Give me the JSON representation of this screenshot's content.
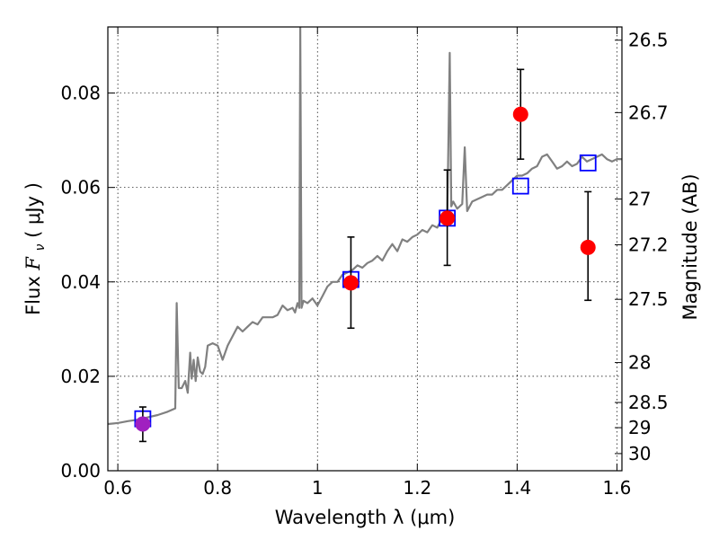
{
  "chart_data": {
    "type": "scatter",
    "xlabel": "Wavelength  λ (μm)",
    "ylabel_prefix": "Flux ",
    "ylabel_symbol": "F",
    "ylabel_sub": "ν",
    "ylabel_suffix": "  ( μJy )",
    "y2label": "Magnitude (AB)",
    "xlim": [
      0.58,
      1.61
    ],
    "ylim": [
      0.0,
      0.094
    ],
    "xticks": [
      0.6,
      0.8,
      1.0,
      1.2,
      1.4,
      1.6
    ],
    "xtick_labels": [
      "0.6",
      "0.8",
      "1",
      "1.2",
      "1.4",
      "1.6"
    ],
    "yticks": [
      0.0,
      0.02,
      0.04,
      0.06,
      0.08
    ],
    "ytick_labels": [
      "0.00",
      "0.02",
      "0.04",
      "0.06",
      "0.08"
    ],
    "y2ticks": [
      26.5,
      26.7,
      27,
      27.2,
      27.5,
      28,
      28.5,
      29,
      30
    ],
    "y2tick_labels": [
      "26.5",
      "26.7",
      "27",
      "27.2",
      "27.5",
      "28",
      "28.5",
      "29",
      "30"
    ],
    "grid": true,
    "colors": {
      "spectrum": "#808080",
      "model_box": "#0000ff",
      "observed": "#ff0000",
      "observed_first": "#a020c0",
      "errorbar": "#000000"
    },
    "series": [
      {
        "kind": "spectrum",
        "x": [
          0.58,
          0.6,
          0.62,
          0.64,
          0.66,
          0.68,
          0.7,
          0.715,
          0.718,
          0.722,
          0.728,
          0.735,
          0.74,
          0.745,
          0.748,
          0.752,
          0.756,
          0.76,
          0.765,
          0.77,
          0.775,
          0.78,
          0.79,
          0.8,
          0.81,
          0.82,
          0.83,
          0.84,
          0.85,
          0.86,
          0.87,
          0.88,
          0.89,
          0.9,
          0.91,
          0.92,
          0.93,
          0.94,
          0.95,
          0.955,
          0.96,
          0.9635,
          0.9655,
          0.968,
          0.972,
          0.98,
          0.99,
          1.0,
          1.01,
          1.02,
          1.03,
          1.04,
          1.05,
          1.06,
          1.07,
          1.08,
          1.09,
          1.1,
          1.11,
          1.12,
          1.13,
          1.14,
          1.15,
          1.16,
          1.17,
          1.18,
          1.19,
          1.2,
          1.21,
          1.22,
          1.23,
          1.24,
          1.25,
          1.255,
          1.26,
          1.265,
          1.268,
          1.272,
          1.28,
          1.29,
          1.295,
          1.3,
          1.31,
          1.32,
          1.33,
          1.34,
          1.35,
          1.36,
          1.37,
          1.38,
          1.39,
          1.4,
          1.41,
          1.42,
          1.43,
          1.44,
          1.45,
          1.46,
          1.47,
          1.48,
          1.49,
          1.5,
          1.51,
          1.52,
          1.53,
          1.54,
          1.55,
          1.56,
          1.57,
          1.58,
          1.59,
          1.6,
          1.61
        ],
        "y": [
          0.0099,
          0.0101,
          0.0105,
          0.0108,
          0.0113,
          0.0118,
          0.0125,
          0.0132,
          0.0355,
          0.0175,
          0.0175,
          0.019,
          0.0165,
          0.025,
          0.0195,
          0.0235,
          0.019,
          0.024,
          0.021,
          0.0205,
          0.022,
          0.0265,
          0.027,
          0.0265,
          0.0235,
          0.0265,
          0.0285,
          0.0305,
          0.0295,
          0.0305,
          0.0315,
          0.031,
          0.0325,
          0.0325,
          0.0325,
          0.033,
          0.035,
          0.034,
          0.0345,
          0.0335,
          0.0355,
          0.0345,
          0.094,
          0.0345,
          0.036,
          0.0355,
          0.0365,
          0.035,
          0.037,
          0.039,
          0.04,
          0.04,
          0.0415,
          0.042,
          0.0425,
          0.0435,
          0.043,
          0.044,
          0.0445,
          0.0455,
          0.0445,
          0.0465,
          0.048,
          0.0465,
          0.049,
          0.0485,
          0.0495,
          0.05,
          0.051,
          0.0505,
          0.052,
          0.0515,
          0.0535,
          0.0545,
          0.0525,
          0.0885,
          0.056,
          0.057,
          0.0555,
          0.0565,
          0.0685,
          0.055,
          0.057,
          0.0575,
          0.058,
          0.0585,
          0.0585,
          0.0595,
          0.0595,
          0.0605,
          0.0615,
          0.0625,
          0.0625,
          0.063,
          0.064,
          0.0645,
          0.0665,
          0.067,
          0.0655,
          0.064,
          0.0645,
          0.0655,
          0.0645,
          0.065,
          0.0665,
          0.0655,
          0.066,
          0.0665,
          0.067,
          0.066,
          0.0655,
          0.066,
          0.066
        ]
      },
      {
        "kind": "model_boxes",
        "x": [
          0.65,
          1.067,
          1.26,
          1.407,
          1.542
        ],
        "y": [
          0.011,
          0.0405,
          0.0535,
          0.0603,
          0.0652
        ]
      },
      {
        "kind": "observed",
        "x": [
          0.65,
          1.067,
          1.26,
          1.407,
          1.542
        ],
        "y": [
          0.0099,
          0.0398,
          0.0535,
          0.0755,
          0.0473
        ],
        "yerr_low": [
          0.0062,
          0.0302,
          0.0435,
          0.066,
          0.0361
        ],
        "yerr_high": [
          0.0135,
          0.0495,
          0.0637,
          0.085,
          0.0591
        ]
      }
    ]
  }
}
